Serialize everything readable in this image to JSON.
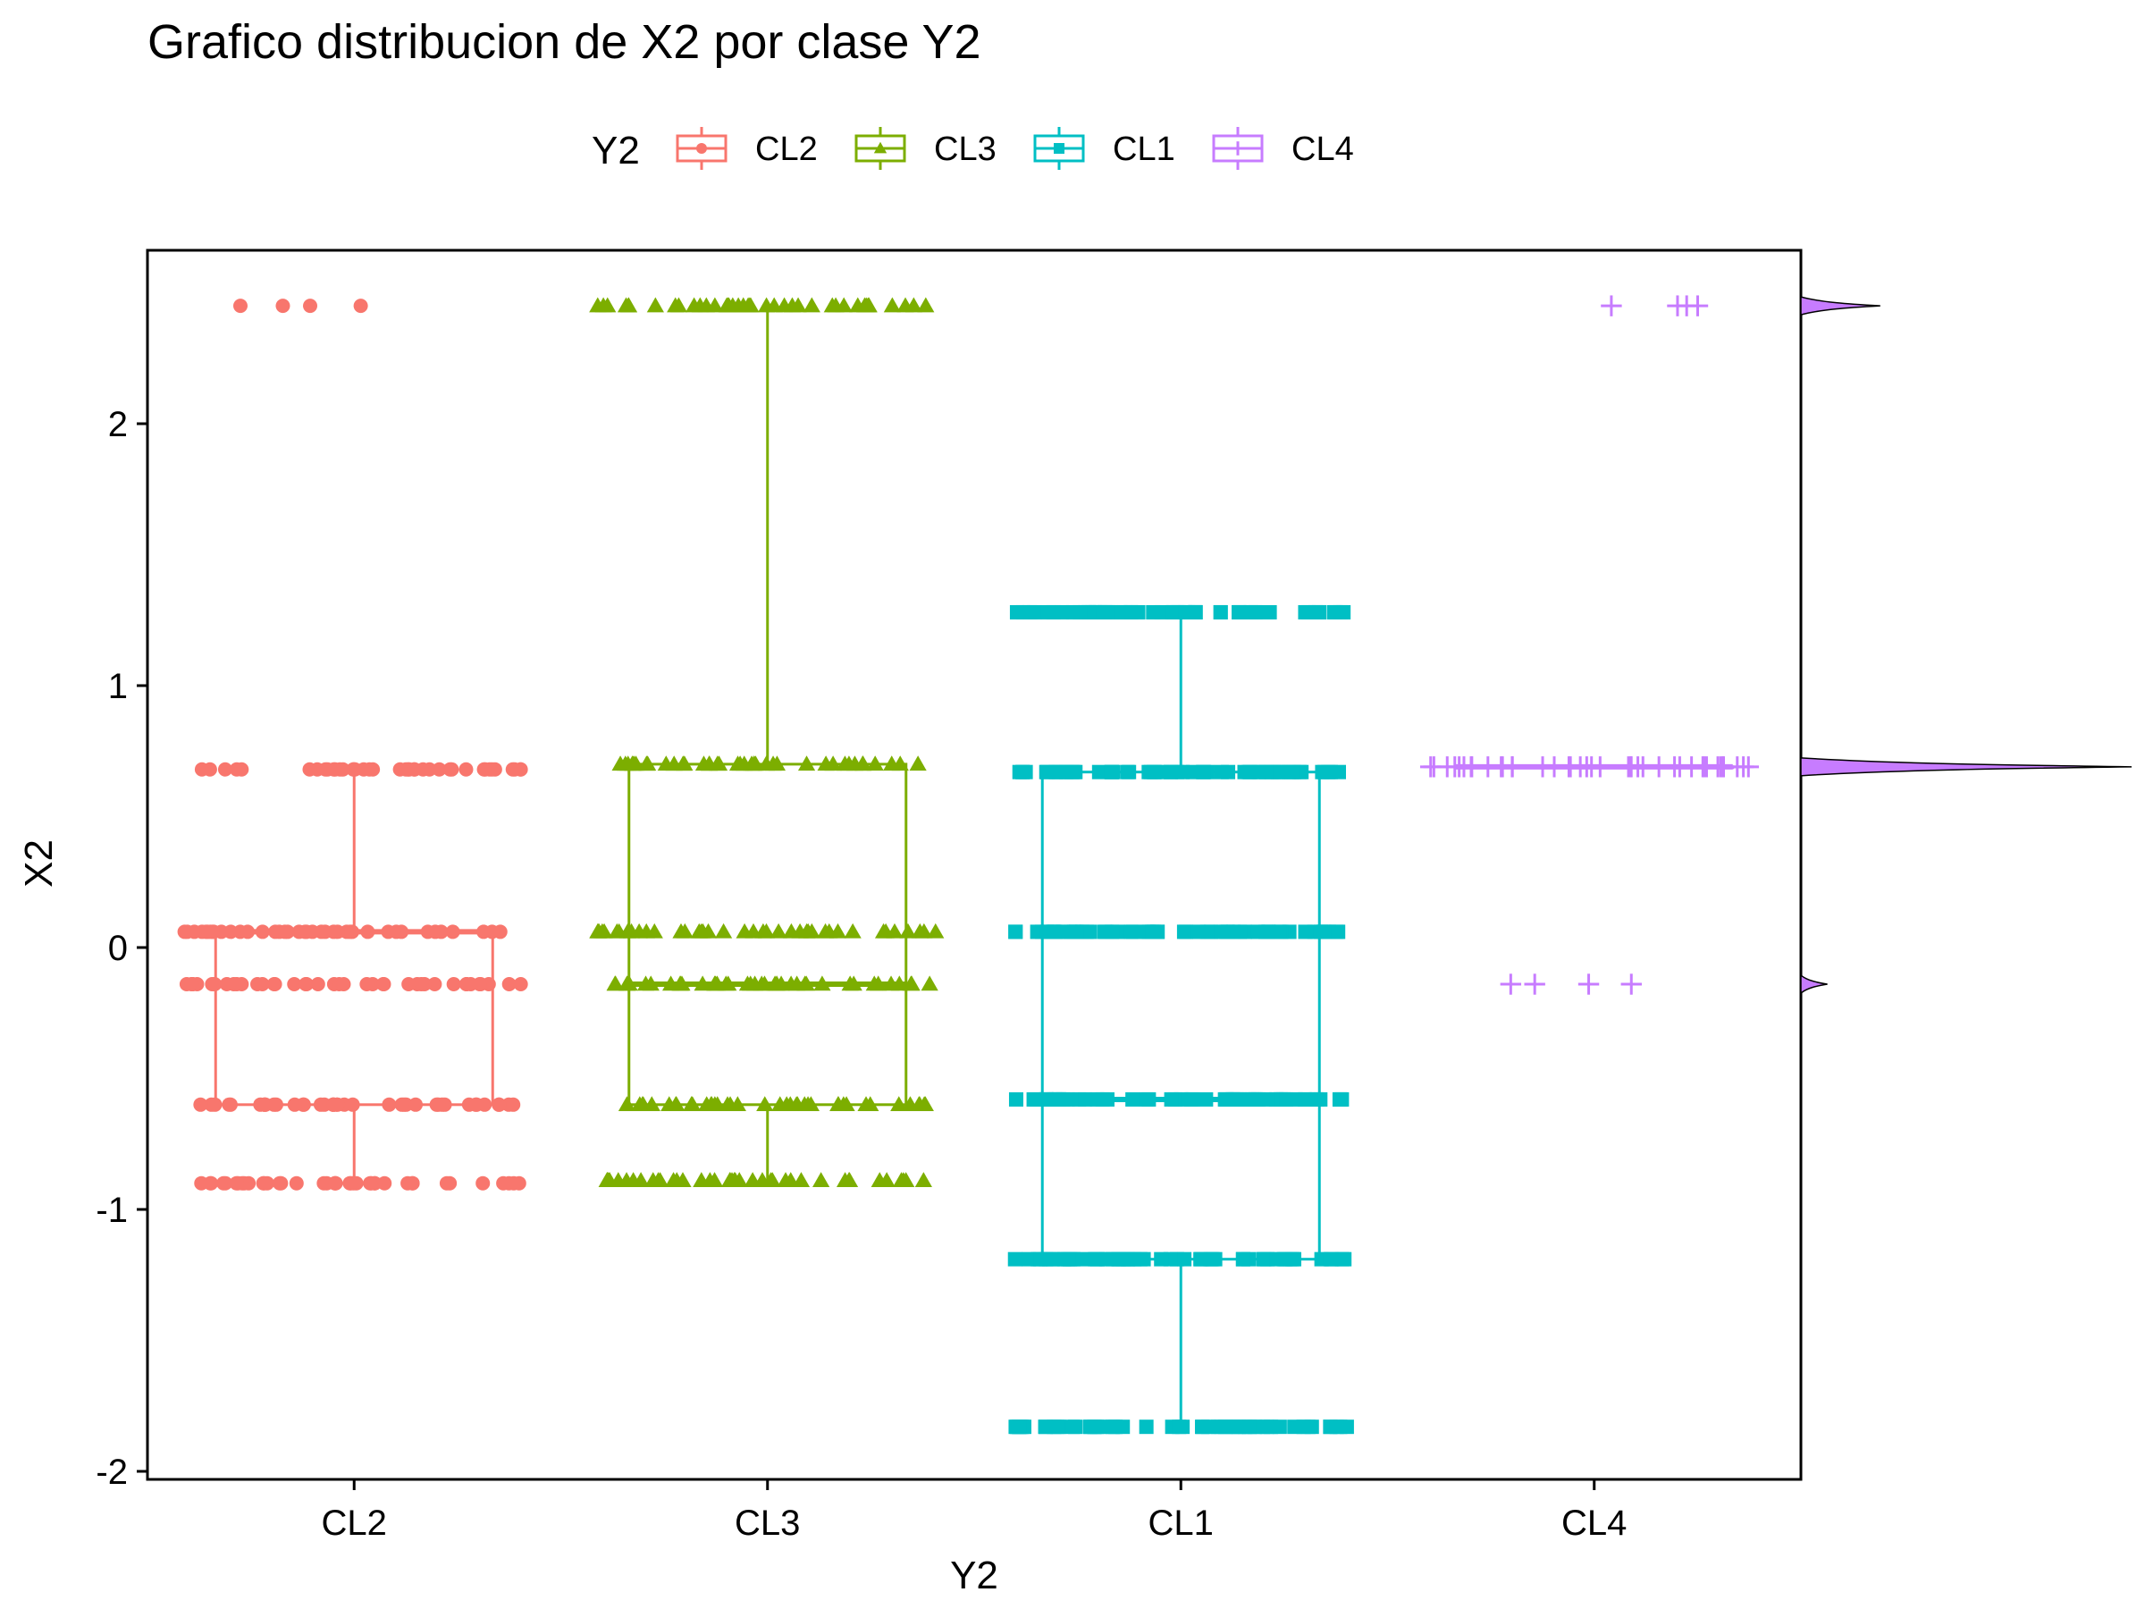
{
  "chart_data": {
    "type": "boxplot",
    "title": "Grafico distribucion de X2 por clase Y2",
    "xlabel": "Y2",
    "ylabel": "X2",
    "ylim": [
      -2.0,
      2.6
    ],
    "yticks": [
      -2,
      -1,
      0,
      1,
      2
    ],
    "ytick_labels": [
      "-2",
      "-1",
      "0",
      "1",
      "2"
    ],
    "grid": false,
    "legend": {
      "title": "Y2",
      "position": "top"
    },
    "categories": [
      "CL2",
      "CL3",
      "CL1",
      "CL4"
    ],
    "series": [
      {
        "name": "CL2",
        "color": "#F8766D",
        "marker": "circle",
        "box": {
          "lower_whisker": -0.9,
          "q1": -0.6,
          "median": 0.06,
          "q3": 0.06,
          "upper_whisker": 0.68
        },
        "outliers": [
          2.45
        ],
        "point_levels": [
          -0.9,
          -0.6,
          -0.14,
          0.06,
          0.68,
          2.45
        ]
      },
      {
        "name": "CL3",
        "color": "#7CAE00",
        "marker": "triangle",
        "box": {
          "lower_whisker": -0.89,
          "q1": -0.6,
          "median": -0.14,
          "q3": 0.7,
          "upper_whisker": 2.45
        },
        "outliers": [],
        "point_levels": [
          -0.89,
          -0.6,
          -0.14,
          0.06,
          0.7,
          2.45
        ]
      },
      {
        "name": "CL1",
        "color": "#00BFC4",
        "marker": "square",
        "box": {
          "lower_whisker": -1.83,
          "q1": -1.19,
          "median": -0.58,
          "q3": 0.67,
          "upper_whisker": 1.28
        },
        "outliers": [],
        "point_levels": [
          -1.83,
          -1.19,
          -0.58,
          0.06,
          0.67,
          1.28
        ]
      },
      {
        "name": "CL4",
        "color": "#C77CFF",
        "marker": "plus",
        "box": {
          "lower_whisker": 0.69,
          "q1": 0.69,
          "median": 0.69,
          "q3": 0.69,
          "upper_whisker": 0.69
        },
        "outliers": [
          2.45,
          -0.14
        ],
        "point_levels": [
          -0.14,
          0.69,
          2.45
        ]
      }
    ],
    "marginal_density": {
      "color": "#C77CFF",
      "peaks": [
        {
          "y": 2.45,
          "relative_height": 0.24
        },
        {
          "y": 0.69,
          "relative_height": 1.0
        },
        {
          "y": -0.14,
          "relative_height": 0.08
        }
      ]
    }
  }
}
